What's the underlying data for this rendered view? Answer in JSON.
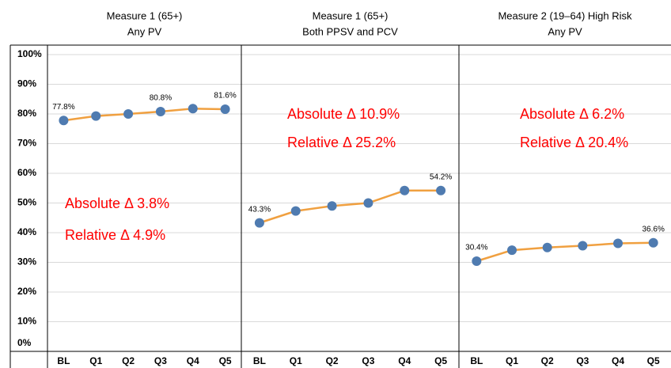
{
  "chart_data": [
    {
      "type": "line",
      "title": "Measure 1 (65+)",
      "subtitle": "Any PV",
      "categories": [
        "BL",
        "Q1",
        "Q2",
        "Q3",
        "Q4",
        "Q5"
      ],
      "series": [
        {
          "color": "#f0a040",
          "marker_color": "#4f7bb0",
          "values": [
            77.8,
            79.3,
            80.0,
            80.8,
            81.8,
            81.6
          ],
          "value_labels": [
            "77.8%",
            null,
            null,
            "80.8%",
            null,
            "81.6%"
          ]
        }
      ],
      "annotations": [
        "Absolute Δ 3.8%",
        "Relative Δ 4.9%"
      ],
      "annotation_color": "#ff0000",
      "ylim": [
        0,
        100
      ],
      "yticks": [
        {
          "value": 0,
          "label": "0%"
        },
        {
          "value": 10,
          "label": "10%"
        },
        {
          "value": 20,
          "label": "20%"
        },
        {
          "value": 30,
          "label": "30%"
        },
        {
          "value": 40,
          "label": "40%"
        },
        {
          "value": 50,
          "label": "50%"
        },
        {
          "value": 60,
          "label": "60%"
        },
        {
          "value": 70,
          "label": "70%"
        },
        {
          "value": 80,
          "label": "80%"
        },
        {
          "value": 90,
          "label": "90%"
        },
        {
          "value": 100,
          "label": "100%"
        }
      ],
      "grid": true
    },
    {
      "type": "line",
      "title": "Measure 1 (65+)",
      "subtitle": "Both PPSV and PCV",
      "categories": [
        "BL",
        "Q1",
        "Q2",
        "Q3",
        "Q4",
        "Q5"
      ],
      "series": [
        {
          "color": "#f0a040",
          "marker_color": "#4f7bb0",
          "values": [
            43.3,
            47.3,
            49.0,
            50.0,
            54.2,
            54.2
          ],
          "value_labels": [
            "43.3%",
            null,
            null,
            null,
            null,
            "54.2%"
          ]
        }
      ],
      "annotations": [
        "Absolute Δ 10.9%",
        "Relative Δ 25.2%"
      ],
      "annotation_color": "#ff0000",
      "ylim": [
        0,
        100
      ]
    },
    {
      "type": "line",
      "title": "Measure 2 (19–64) High Risk",
      "subtitle": "Any PV",
      "categories": [
        "BL",
        "Q1",
        "Q2",
        "Q3",
        "Q4",
        "Q5"
      ],
      "series": [
        {
          "color": "#f0a040",
          "marker_color": "#4f7bb0",
          "values": [
            30.4,
            34.1,
            35.0,
            35.6,
            36.4,
            36.6
          ],
          "value_labels": [
            "30.4%",
            null,
            null,
            null,
            null,
            "36.6%"
          ]
        }
      ],
      "annotations": [
        "Absolute Δ 6.2%",
        "Relative Δ 20.4%"
      ],
      "annotation_color": "#ff0000",
      "ylim": [
        0,
        100
      ]
    }
  ]
}
